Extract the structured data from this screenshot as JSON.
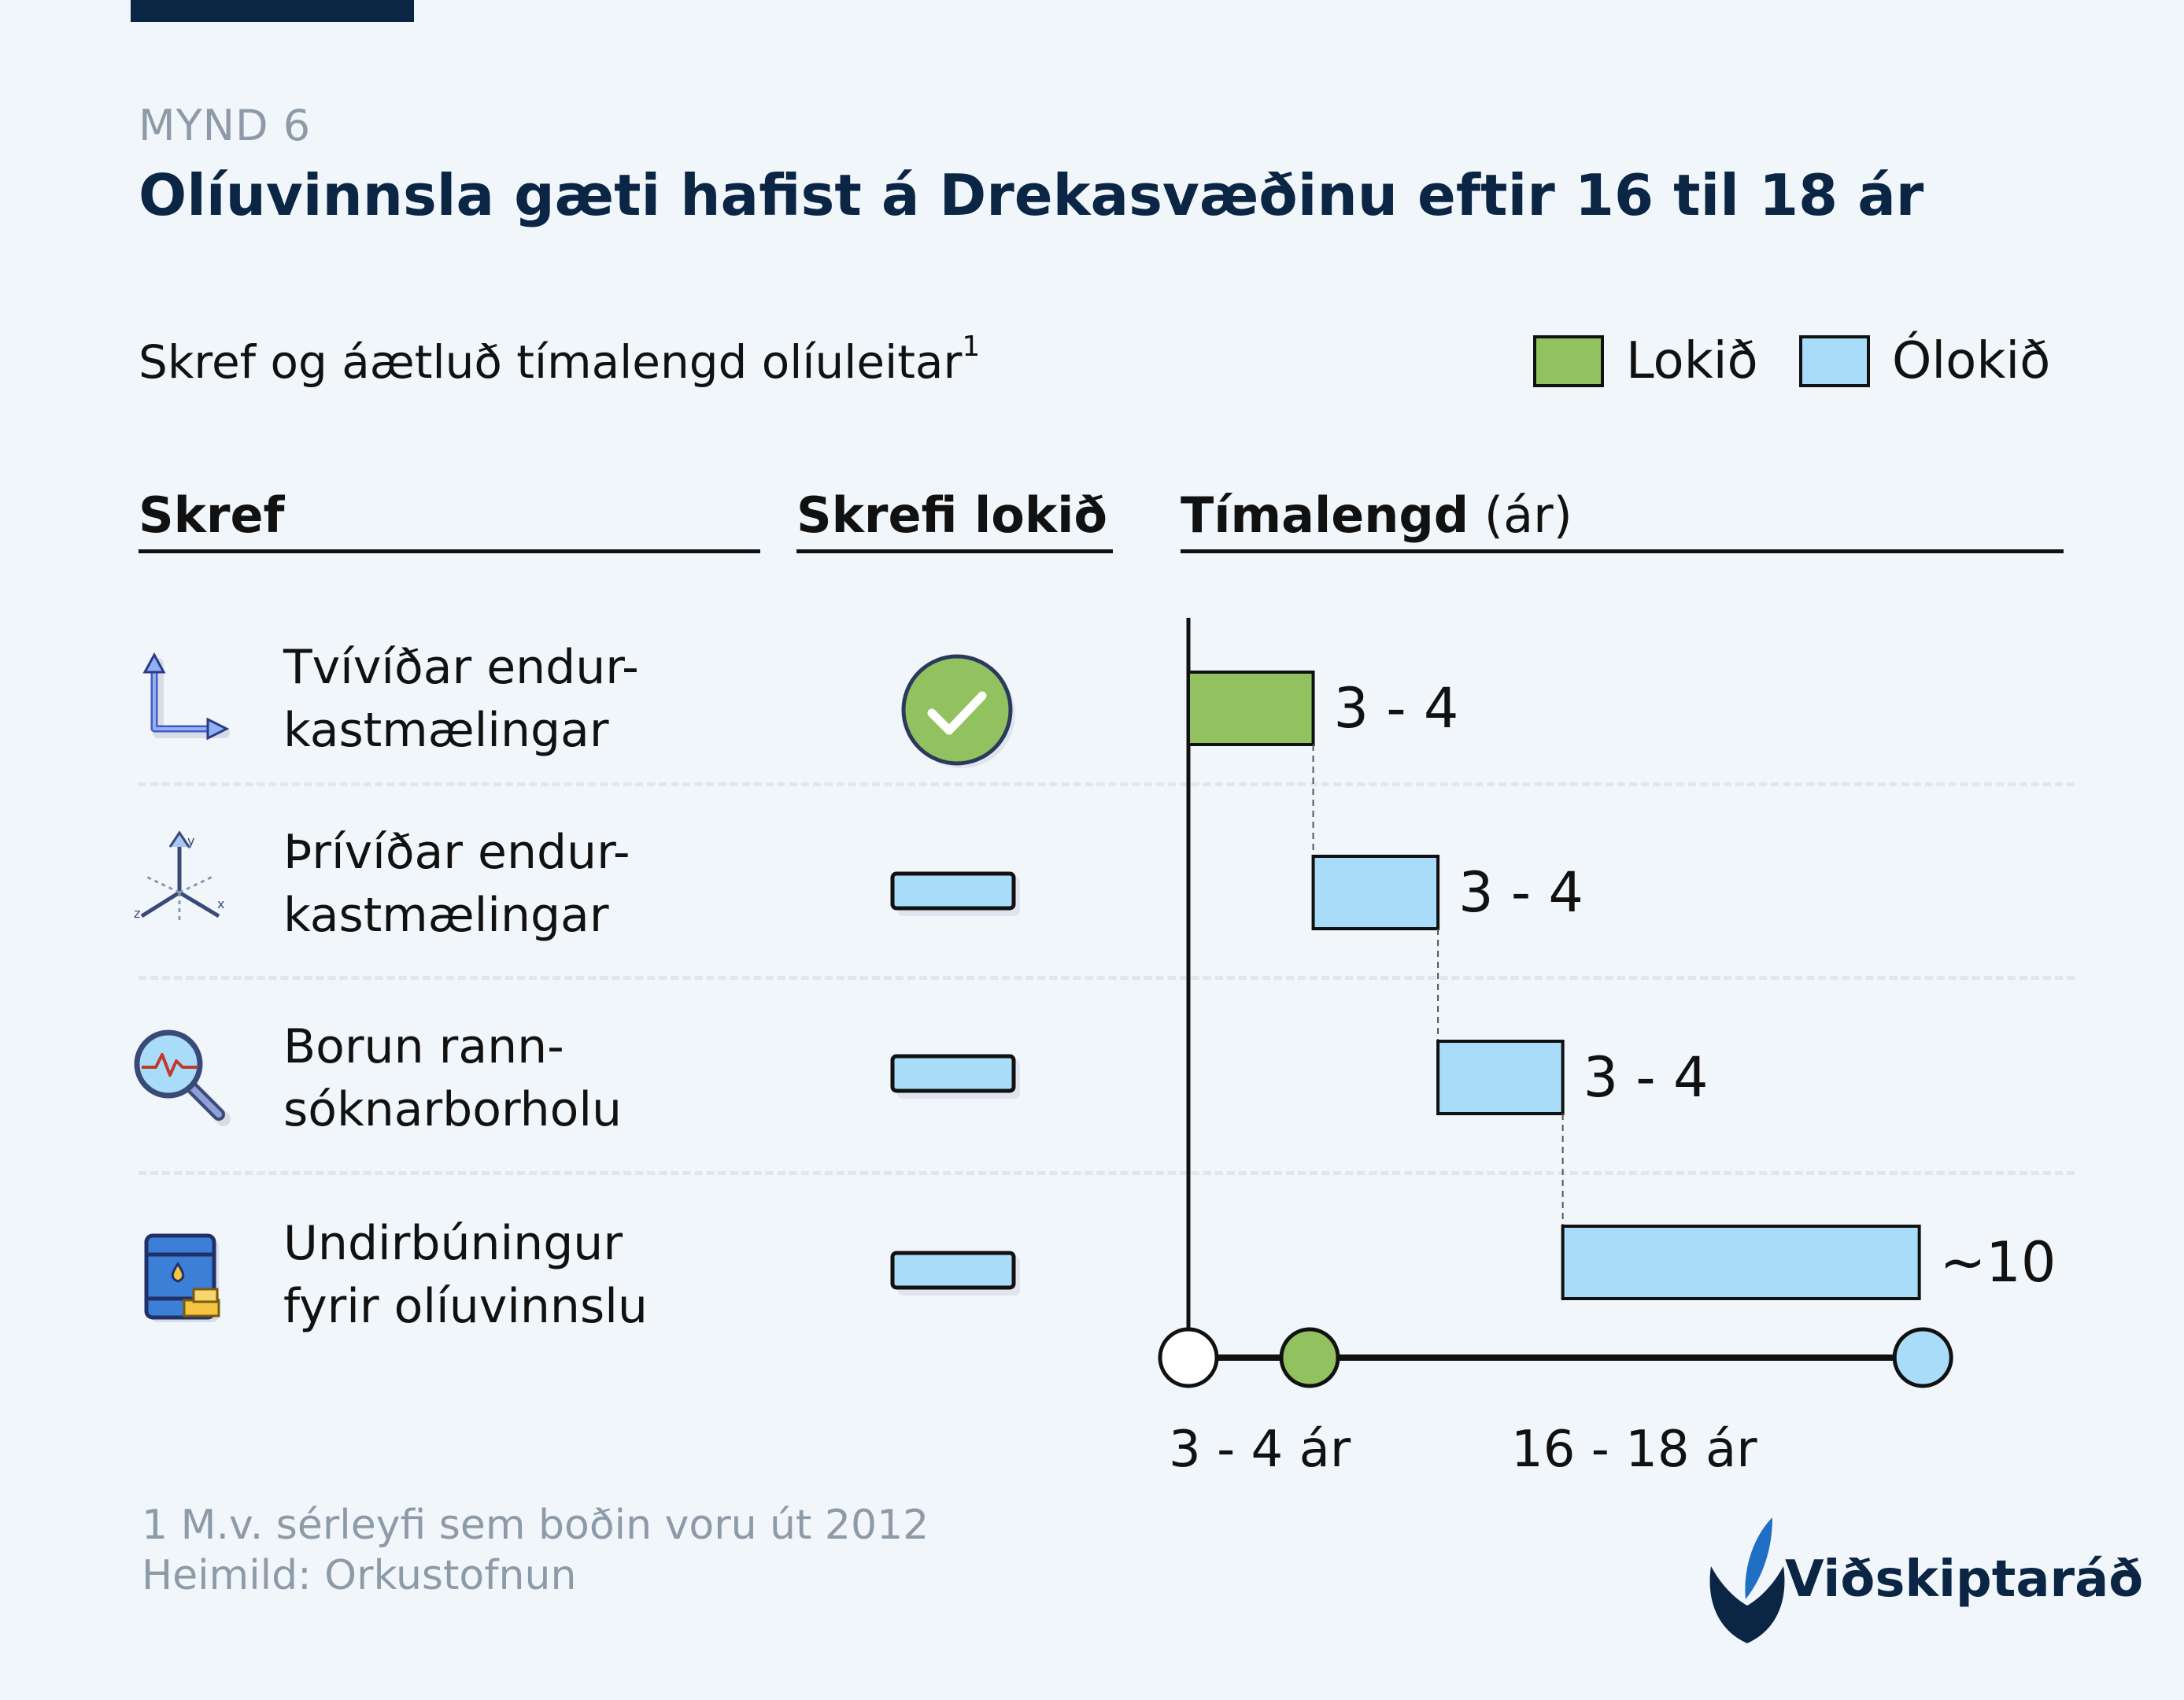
{
  "kicker": "MYND 6",
  "title": "Olíuvinnsla gæti hafist á Drekasvæðinu eftir 16 til 18 ár",
  "subtitle": "Skref og áætluð tímalengd olíuleitar",
  "subtitle_sup": "1",
  "legend": {
    "done": "Lokið",
    "pending": "Ólokið"
  },
  "columns": {
    "step": "Skref",
    "completed": "Skrefi lokið",
    "duration_bold": "Tímalengd",
    "duration_unit": "(ár)"
  },
  "steps": [
    {
      "line1": "Tvívíðar endur-",
      "line2": "kastmælingar",
      "icon": "2d-axes-icon",
      "status": "done"
    },
    {
      "line1": "Þrívíðar endur-",
      "line2": "kastmælingar",
      "icon": "3d-axes-icon",
      "status": "pending"
    },
    {
      "line1": "Borun rann-",
      "line2": "sóknarborholu",
      "icon": "magnifier-chart-icon",
      "status": "pending"
    },
    {
      "line1": "Undirbúningur",
      "line2": "fyrir olíuvinnslu",
      "icon": "oil-barrel-gold-icon",
      "status": "pending"
    }
  ],
  "colors": {
    "done": "#92c160",
    "pending": "#a9dcf8",
    "ink": "#111111",
    "navy": "#0b2545",
    "muted": "#8d9aa8"
  },
  "chart_data": {
    "type": "bar",
    "subtype": "gantt",
    "categories": [
      "Tvívíðar endurkastmælingar",
      "Þrívíðar endurkastmælingar",
      "Borun rannsóknarborholu",
      "Undirbúningur fyrir olíuvinnslu"
    ],
    "start": [
      0,
      3.5,
      7,
      10.5
    ],
    "values": [
      3.5,
      3.5,
      3.5,
      10
    ],
    "data_labels": [
      "3 - 4",
      "3 - 4",
      "3 - 4",
      "~10"
    ],
    "status": [
      "done",
      "pending",
      "pending",
      "pending"
    ],
    "xlim": [
      0,
      21
    ],
    "timeline": {
      "markers": [
        {
          "at": 0,
          "fill": "#ffffff"
        },
        {
          "at": 3.4,
          "fill": "#92c160"
        },
        {
          "at": 20.6,
          "fill": "#a9dcf8"
        }
      ],
      "tick_labels": [
        {
          "at": 2,
          "text": "3 - 4 ár"
        },
        {
          "at": 12.5,
          "text": "16 - 18 ár"
        }
      ]
    }
  },
  "footer": {
    "note": "1 M.v. sérleyfi sem boðin voru út 2012",
    "source": "Heimild: Orkustofnun"
  },
  "brand": "Viðskiptaráð"
}
